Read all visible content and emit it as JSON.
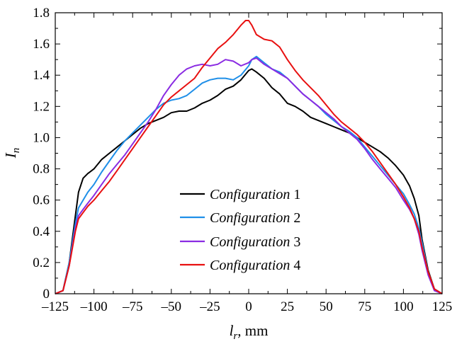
{
  "chart_data": {
    "type": "line",
    "title": "",
    "xlabel": {
      "var": "l",
      "sub": "r",
      "unit": ", mm"
    },
    "ylabel": {
      "var": "I",
      "sub": "n"
    },
    "xlim": [
      -125,
      125
    ],
    "ylim": [
      0,
      1.8
    ],
    "xticks": [
      "–125",
      "–100",
      "–75",
      "–50",
      "–25",
      "0",
      "25",
      "50",
      "75",
      "100",
      "125"
    ],
    "xtick_values": [
      -125,
      -100,
      -75,
      -50,
      -25,
      0,
      25,
      50,
      75,
      100,
      125
    ],
    "yticks": [
      "0",
      "0.2",
      "0.4",
      "0.6",
      "0.8",
      "1.0",
      "1.2",
      "1.4",
      "1.6",
      "1.8"
    ],
    "ytick_values": [
      0,
      0.2,
      0.4,
      0.6,
      0.8,
      1.0,
      1.2,
      1.4,
      1.6,
      1.8
    ],
    "grid": false,
    "legend_position": "lower-center",
    "series": [
      {
        "name_italic": "Configuration",
        "name_num": "1",
        "color": "#000000",
        "x": [
          -125,
          -120,
          -116,
          -112,
          -110,
          -107,
          -104,
          -100,
          -95,
          -90,
          -85,
          -80,
          -75,
          -70,
          -65,
          -60,
          -55,
          -50,
          -45,
          -40,
          -35,
          -30,
          -25,
          -20,
          -15,
          -10,
          -5,
          0,
          2,
          5,
          10,
          15,
          20,
          25,
          30,
          35,
          40,
          45,
          50,
          55,
          60,
          65,
          70,
          75,
          80,
          85,
          90,
          95,
          100,
          104,
          107,
          110,
          112,
          116,
          120,
          125
        ],
        "y": [
          0,
          0.02,
          0.2,
          0.5,
          0.65,
          0.74,
          0.77,
          0.8,
          0.86,
          0.9,
          0.94,
          0.98,
          1.02,
          1.06,
          1.09,
          1.11,
          1.13,
          1.16,
          1.17,
          1.17,
          1.19,
          1.22,
          1.24,
          1.27,
          1.31,
          1.33,
          1.37,
          1.43,
          1.44,
          1.42,
          1.38,
          1.32,
          1.28,
          1.22,
          1.2,
          1.17,
          1.13,
          1.11,
          1.09,
          1.07,
          1.05,
          1.03,
          1.0,
          0.97,
          0.94,
          0.91,
          0.87,
          0.82,
          0.76,
          0.69,
          0.61,
          0.5,
          0.35,
          0.15,
          0.03,
          0
        ]
      },
      {
        "name_italic": "Configuration",
        "name_num": "2",
        "color": "#1f8fe8",
        "x": [
          -125,
          -120,
          -116,
          -112,
          -110,
          -107,
          -104,
          -100,
          -95,
          -90,
          -85,
          -80,
          -75,
          -70,
          -65,
          -60,
          -55,
          -50,
          -45,
          -40,
          -35,
          -30,
          -25,
          -20,
          -15,
          -10,
          -5,
          0,
          2,
          5,
          10,
          15,
          20,
          25,
          30,
          35,
          40,
          45,
          50,
          55,
          60,
          65,
          70,
          75,
          80,
          85,
          90,
          95,
          100,
          104,
          107,
          110,
          112,
          116,
          120,
          125
        ],
        "y": [
          0,
          0.02,
          0.2,
          0.45,
          0.55,
          0.6,
          0.65,
          0.7,
          0.78,
          0.85,
          0.92,
          0.98,
          1.03,
          1.08,
          1.13,
          1.18,
          1.22,
          1.24,
          1.25,
          1.27,
          1.31,
          1.35,
          1.37,
          1.38,
          1.38,
          1.37,
          1.4,
          1.46,
          1.5,
          1.52,
          1.48,
          1.44,
          1.42,
          1.38,
          1.33,
          1.28,
          1.24,
          1.2,
          1.15,
          1.11,
          1.07,
          1.04,
          1.0,
          0.94,
          0.88,
          0.82,
          0.76,
          0.7,
          0.64,
          0.57,
          0.51,
          0.42,
          0.33,
          0.14,
          0.03,
          0
        ]
      },
      {
        "name_italic": "Configuration",
        "name_num": "3",
        "color": "#8a2be2",
        "x": [
          -125,
          -120,
          -116,
          -112,
          -110,
          -107,
          -104,
          -100,
          -95,
          -90,
          -85,
          -80,
          -75,
          -70,
          -65,
          -60,
          -55,
          -50,
          -45,
          -40,
          -35,
          -30,
          -25,
          -20,
          -15,
          -10,
          -5,
          0,
          2,
          5,
          10,
          15,
          20,
          25,
          30,
          35,
          40,
          45,
          50,
          55,
          60,
          65,
          70,
          75,
          80,
          85,
          90,
          95,
          100,
          104,
          107,
          110,
          112,
          116,
          120,
          125
        ],
        "y": [
          0,
          0.02,
          0.18,
          0.42,
          0.5,
          0.54,
          0.58,
          0.63,
          0.7,
          0.77,
          0.83,
          0.89,
          0.96,
          1.03,
          1.1,
          1.18,
          1.27,
          1.34,
          1.4,
          1.44,
          1.46,
          1.47,
          1.46,
          1.47,
          1.5,
          1.49,
          1.46,
          1.48,
          1.5,
          1.51,
          1.47,
          1.44,
          1.41,
          1.38,
          1.33,
          1.28,
          1.24,
          1.2,
          1.16,
          1.12,
          1.07,
          1.03,
          0.99,
          0.93,
          0.86,
          0.8,
          0.74,
          0.68,
          0.6,
          0.54,
          0.48,
          0.38,
          0.28,
          0.12,
          0.02,
          0
        ]
      },
      {
        "name_italic": "Configuration",
        "name_num": "4",
        "color": "#e81010",
        "x": [
          -125,
          -120,
          -116,
          -112,
          -110,
          -107,
          -104,
          -100,
          -95,
          -90,
          -85,
          -80,
          -75,
          -70,
          -65,
          -60,
          -55,
          -50,
          -45,
          -40,
          -35,
          -30,
          -25,
          -20,
          -15,
          -10,
          -5,
          -2,
          0,
          2,
          5,
          10,
          15,
          20,
          25,
          30,
          35,
          40,
          45,
          50,
          55,
          60,
          65,
          70,
          75,
          80,
          85,
          90,
          95,
          100,
          104,
          107,
          110,
          112,
          116,
          120,
          125
        ],
        "y": [
          0,
          0.02,
          0.18,
          0.4,
          0.48,
          0.52,
          0.56,
          0.6,
          0.66,
          0.72,
          0.79,
          0.86,
          0.93,
          1.0,
          1.07,
          1.14,
          1.21,
          1.26,
          1.3,
          1.34,
          1.38,
          1.45,
          1.51,
          1.57,
          1.61,
          1.66,
          1.72,
          1.75,
          1.75,
          1.72,
          1.66,
          1.63,
          1.62,
          1.58,
          1.5,
          1.43,
          1.37,
          1.32,
          1.27,
          1.21,
          1.15,
          1.1,
          1.06,
          1.02,
          0.97,
          0.91,
          0.84,
          0.77,
          0.7,
          0.62,
          0.55,
          0.48,
          0.4,
          0.3,
          0.14,
          0.03,
          0
        ]
      }
    ]
  }
}
